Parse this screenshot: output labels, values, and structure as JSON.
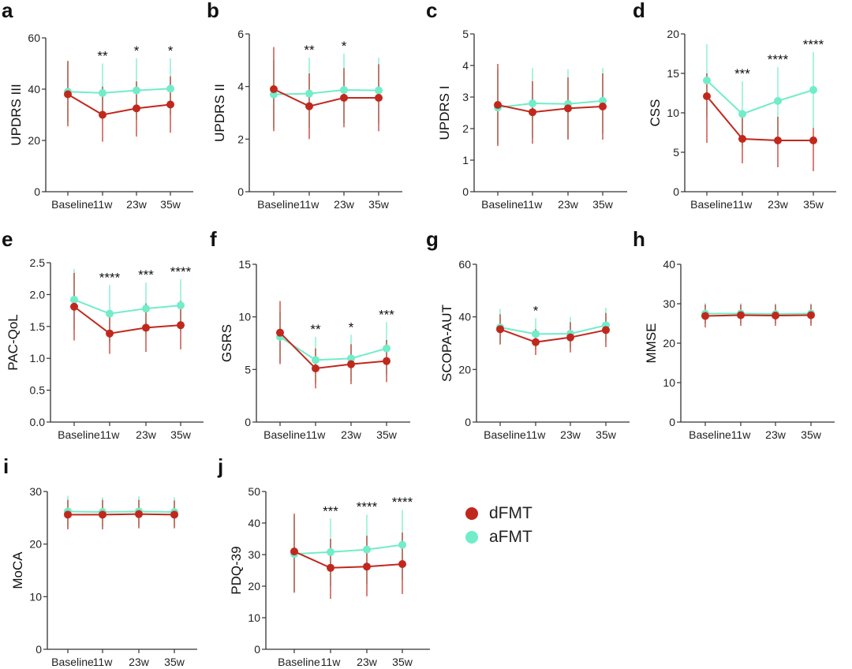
{
  "colors": {
    "dFMT": "#c1281d",
    "aFMT": "#72ecc9"
  },
  "legend": [
    {
      "name": "dFMT",
      "color": "#c1281d"
    },
    {
      "name": "aFMT",
      "color": "#72ecc9"
    }
  ],
  "chart_data": [
    {
      "panel": "a",
      "type": "line",
      "ylabel": "UPDRS III",
      "categories": [
        "Baseline",
        "11w",
        "23w",
        "35w"
      ],
      "ylim": [
        0,
        60
      ],
      "yticks": [
        "0",
        "20",
        "40",
        "60"
      ],
      "series": [
        {
          "name": "dFMT",
          "values": [
            38,
            30,
            32.5,
            34
          ],
          "err_low": [
            25.5,
            19.5,
            21.5,
            23
          ],
          "err_high": [
            51,
            41,
            43,
            45
          ]
        },
        {
          "name": "aFMT",
          "values": [
            39,
            38.5,
            39.5,
            40.2
          ],
          "err_low": [
            27,
            28,
            28,
            30
          ],
          "err_high": [
            51,
            50,
            52,
            52
          ]
        }
      ],
      "significance": [
        "",
        "**",
        "*",
        "*"
      ]
    },
    {
      "panel": "b",
      "type": "line",
      "ylabel": "UPDRS II",
      "categories": [
        "Baseline",
        "11w",
        "23w",
        "35w"
      ],
      "ylim": [
        0,
        6
      ],
      "yticks": [
        "0",
        "2",
        "4",
        "6"
      ],
      "series": [
        {
          "name": "dFMT",
          "values": [
            3.9,
            3.25,
            3.57,
            3.57
          ],
          "err_low": [
            2.3,
            2.0,
            2.45,
            2.3
          ],
          "err_high": [
            5.5,
            4.5,
            4.7,
            4.85
          ]
        },
        {
          "name": "aFMT",
          "values": [
            3.7,
            3.73,
            3.87,
            3.85
          ],
          "err_low": [
            2.4,
            2.4,
            2.6,
            2.6
          ],
          "err_high": [
            5.0,
            5.1,
            5.25,
            5.1
          ]
        }
      ],
      "significance": [
        "",
        "**",
        "*",
        ""
      ]
    },
    {
      "panel": "c",
      "type": "line",
      "ylabel": "UPDRS I",
      "categories": [
        "Baseline",
        "11w",
        "23w",
        "35w"
      ],
      "ylim": [
        0,
        5
      ],
      "yticks": [
        "0",
        "1",
        "2",
        "3",
        "4",
        "5"
      ],
      "series": [
        {
          "name": "dFMT",
          "values": [
            2.75,
            2.52,
            2.64,
            2.7
          ],
          "err_low": [
            1.45,
            1.52,
            1.65,
            1.65
          ],
          "err_high": [
            4.05,
            3.5,
            3.62,
            3.75
          ]
        },
        {
          "name": "aFMT",
          "values": [
            2.67,
            2.8,
            2.78,
            2.88
          ],
          "err_low": [
            1.5,
            1.7,
            1.7,
            1.85
          ],
          "err_high": [
            3.9,
            3.92,
            3.88,
            3.92
          ]
        }
      ],
      "significance": [
        "",
        "",
        "",
        ""
      ]
    },
    {
      "panel": "d",
      "type": "line",
      "ylabel": "CSS",
      "categories": [
        "Baseline",
        "11w",
        "23w",
        "35w"
      ],
      "ylim": [
        0,
        20
      ],
      "yticks": [
        "0",
        "5",
        "10",
        "15",
        "20"
      ],
      "series": [
        {
          "name": "dFMT",
          "values": [
            12.1,
            6.7,
            6.5,
            6.5
          ],
          "err_low": [
            6.2,
            3.6,
            3.1,
            2.6
          ],
          "err_high": [
            15,
            9.5,
            9.5,
            8.1
          ]
        },
        {
          "name": "aFMT",
          "values": [
            14.1,
            9.85,
            11.5,
            12.9
          ],
          "err_low": [
            9.5,
            5.7,
            7.2,
            8.1
          ],
          "err_high": [
            18.7,
            14,
            15.8,
            17.7
          ]
        }
      ],
      "significance": [
        "",
        "***",
        "****",
        "****"
      ]
    },
    {
      "panel": "e",
      "type": "line",
      "ylabel": "PAC-QoL",
      "categories": [
        "Baseline",
        "11w",
        "23w",
        "35w"
      ],
      "ylim": [
        0,
        2.5
      ],
      "yticks": [
        "0.0",
        "0.5",
        "1.0",
        "1.5",
        "2.0",
        "2.5"
      ],
      "series": [
        {
          "name": "dFMT",
          "values": [
            1.81,
            1.39,
            1.48,
            1.52
          ],
          "err_low": [
            1.28,
            1.07,
            1.1,
            1.14
          ],
          "err_high": [
            2.34,
            1.71,
            1.86,
            1.9
          ]
        },
        {
          "name": "aFMT",
          "values": [
            1.92,
            1.7,
            1.78,
            1.83
          ],
          "err_low": [
            1.45,
            1.25,
            1.38,
            1.42
          ],
          "err_high": [
            2.4,
            2.15,
            2.19,
            2.24
          ]
        }
      ],
      "significance": [
        "",
        "****",
        "***",
        "****"
      ]
    },
    {
      "panel": "f",
      "type": "line",
      "ylabel": "GSRS",
      "categories": [
        "Baseline",
        "11w",
        "23w",
        "35w"
      ],
      "ylim": [
        0,
        15
      ],
      "yticks": [
        "0",
        "5",
        "10",
        "15"
      ],
      "series": [
        {
          "name": "dFMT",
          "values": [
            8.5,
            5.1,
            5.5,
            5.8
          ],
          "err_low": [
            5.5,
            3.2,
            3.6,
            3.8
          ],
          "err_high": [
            11.5,
            7,
            7.4,
            7.8
          ]
        },
        {
          "name": "aFMT",
          "values": [
            8.1,
            5.9,
            6.05,
            7.0
          ],
          "err_low": [
            5.7,
            3.7,
            3.9,
            4.5
          ],
          "err_high": [
            10.5,
            8.1,
            8.3,
            9.5
          ]
        }
      ],
      "significance": [
        "",
        "**",
        "*",
        "***"
      ]
    },
    {
      "panel": "g",
      "type": "line",
      "ylabel": "SCOPA-AUT",
      "categories": [
        "Baseline",
        "11w",
        "23w",
        "35w"
      ],
      "ylim": [
        0,
        60
      ],
      "yticks": [
        "0",
        "20",
        "40",
        "60"
      ],
      "series": [
        {
          "name": "dFMT",
          "values": [
            35.3,
            30.4,
            32.2,
            35
          ],
          "err_low": [
            29.5,
            25.5,
            26.5,
            28.5
          ],
          "err_high": [
            41,
            35.3,
            38,
            41.5
          ]
        },
        {
          "name": "aFMT",
          "values": [
            36,
            33.5,
            33.6,
            36.8
          ],
          "err_low": [
            29.5,
            27.5,
            28,
            30.5
          ],
          "err_high": [
            43,
            39.5,
            40,
            43.5
          ]
        }
      ],
      "significance": [
        "",
        "*",
        "",
        ""
      ]
    },
    {
      "panel": "h",
      "type": "line",
      "ylabel": "MMSE",
      "categories": [
        "Baseline",
        "11w",
        "23w",
        "35w"
      ],
      "ylim": [
        0,
        40
      ],
      "yticks": [
        "0",
        "10",
        "20",
        "30",
        "40"
      ],
      "series": [
        {
          "name": "dFMT",
          "values": [
            26.9,
            27.1,
            27.0,
            27.1
          ],
          "err_low": [
            24,
            24.4,
            24.4,
            24.4
          ],
          "err_high": [
            29.8,
            29.8,
            29.8,
            29.8
          ]
        },
        {
          "name": "aFMT",
          "values": [
            27.5,
            27.5,
            27.4,
            27.5
          ],
          "err_low": [
            25,
            25,
            25,
            25
          ],
          "err_high": [
            30.2,
            30.2,
            30.1,
            30.1
          ]
        }
      ],
      "significance": [
        "",
        "",
        "",
        ""
      ]
    },
    {
      "panel": "i",
      "type": "line",
      "ylabel": "MoCA",
      "categories": [
        "Baseline",
        "11w",
        "23w",
        "35w"
      ],
      "ylim": [
        0,
        30
      ],
      "yticks": [
        "0",
        "10",
        "20",
        "30"
      ],
      "series": [
        {
          "name": "dFMT",
          "values": [
            25.6,
            25.6,
            25.7,
            25.6
          ],
          "err_low": [
            22.8,
            22.8,
            23,
            23
          ],
          "err_high": [
            28.4,
            28.4,
            28.4,
            28.3
          ]
        },
        {
          "name": "aFMT",
          "values": [
            26.2,
            26.1,
            26.2,
            26.1
          ],
          "err_low": [
            23.2,
            23.2,
            23.3,
            23.3
          ],
          "err_high": [
            29.2,
            28.9,
            29.1,
            28.9
          ]
        }
      ],
      "significance": [
        "",
        "",
        "",
        ""
      ]
    },
    {
      "panel": "j",
      "type": "line",
      "ylabel": "PDQ-39",
      "categories": [
        "Baseline",
        "11w",
        "23w",
        "35w"
      ],
      "ylim": [
        0,
        50
      ],
      "yticks": [
        "0",
        "10",
        "20",
        "30",
        "40",
        "50"
      ],
      "series": [
        {
          "name": "dFMT",
          "values": [
            31,
            25.8,
            26.2,
            27
          ],
          "err_low": [
            18,
            16,
            16.8,
            17.5
          ],
          "err_high": [
            43,
            35,
            36,
            37
          ]
        },
        {
          "name": "aFMT",
          "values": [
            30.2,
            30.8,
            31.6,
            33.1
          ],
          "err_low": [
            17.8,
            20,
            20.6,
            22
          ],
          "err_high": [
            42.2,
            41.4,
            42.7,
            44.2
          ]
        }
      ],
      "significance": [
        "",
        "***",
        "****",
        "****"
      ]
    }
  ]
}
